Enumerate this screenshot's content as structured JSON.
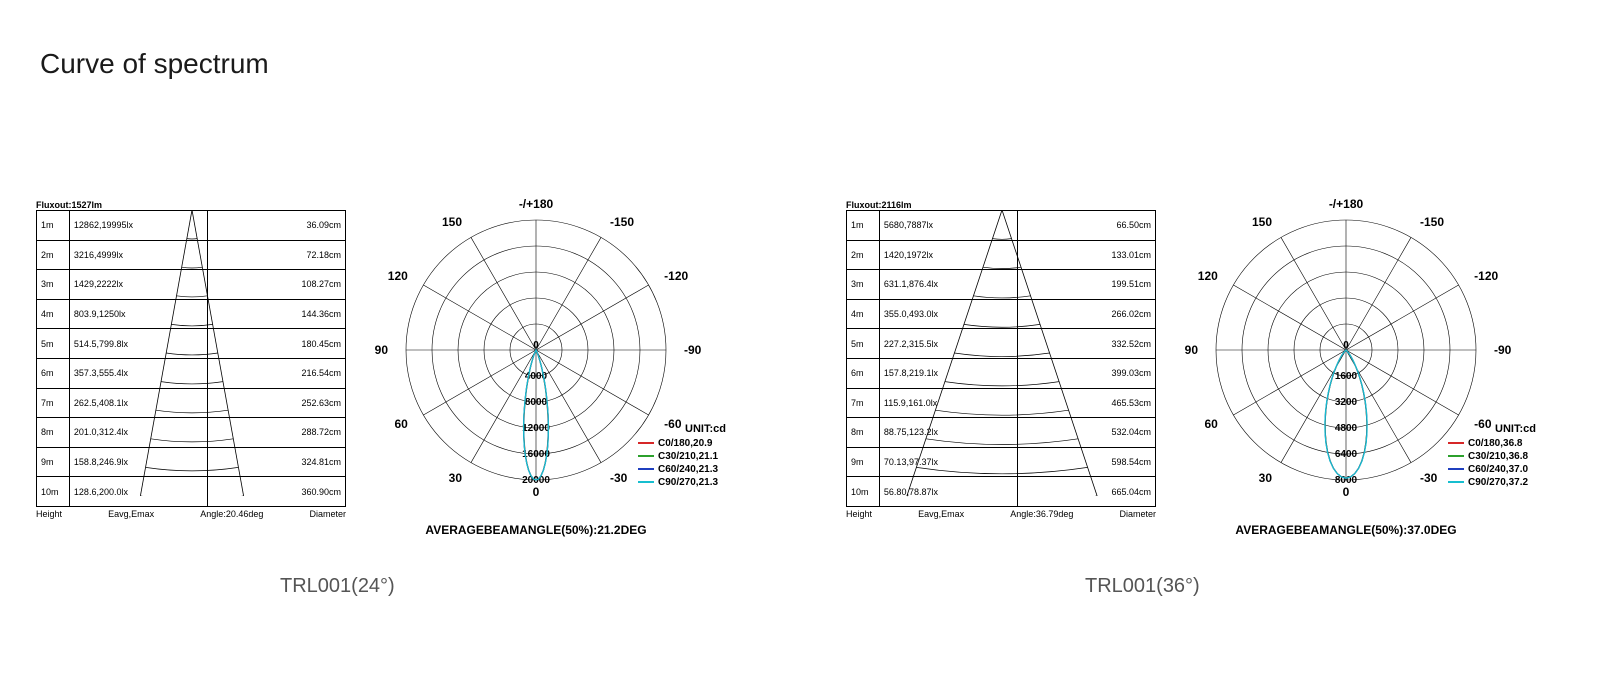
{
  "title": "Curve of spectrum",
  "captions": {
    "left": "TRL001(24°)",
    "right": "TRL001(36°)"
  },
  "panels": [
    {
      "key": "left",
      "flux_label": "Fluxout:1527lm",
      "axis": {
        "height": "Height",
        "eavg": "Eavg,Emax",
        "angle": "Angle:20.46deg",
        "diameter": "Diameter"
      },
      "rows": [
        {
          "h": "1m",
          "lx": "12862,19995lx",
          "dia": "36.09cm"
        },
        {
          "h": "2m",
          "lx": "3216,4999lx",
          "dia": "72.18cm"
        },
        {
          "h": "3m",
          "lx": "1429,2222lx",
          "dia": "108.27cm"
        },
        {
          "h": "4m",
          "lx": "803.9,1250lx",
          "dia": "144.36cm"
        },
        {
          "h": "5m",
          "lx": "514.5,799.8lx",
          "dia": "180.45cm"
        },
        {
          "h": "6m",
          "lx": "357.3,555.4lx",
          "dia": "216.54cm"
        },
        {
          "h": "7m",
          "lx": "262.5,408.1lx",
          "dia": "252.63cm"
        },
        {
          "h": "8m",
          "lx": "201.0,312.4lx",
          "dia": "288.72cm"
        },
        {
          "h": "9m",
          "lx": "158.8,246.9lx",
          "dia": "324.81cm"
        },
        {
          "h": "10m",
          "lx": "128.6,200.0lx",
          "dia": "360.90cm"
        }
      ],
      "beam_half_angle_deg": 10.23,
      "polar": {
        "top_label": "-/+180",
        "angle_labels": [
          "-150",
          "150",
          "-120",
          "120",
          "-90",
          "90",
          "-60",
          "60",
          "-30",
          "30",
          "0"
        ],
        "rings": 5,
        "spokes": 12,
        "ring_values": [
          "4000",
          "8000",
          "12000",
          "16000",
          "20000"
        ],
        "max_value": 20000,
        "unit_label": "UNIT:cd",
        "avg_label": "AVERAGEBEAMANGLE(50%):21.2DEG",
        "legend": [
          {
            "color": "#d62728",
            "label": "C0/180,20.9"
          },
          {
            "color": "#2ca02c",
            "label": "C30/210,21.1"
          },
          {
            "color": "#1f3fbf",
            "label": "C60/240,21.3"
          },
          {
            "color": "#17becf",
            "label": "C90/270,21.3"
          }
        ],
        "curves": [
          {
            "color": "#d62728",
            "half_angle_deg": 10.45,
            "peak": 19995
          },
          {
            "color": "#2ca02c",
            "half_angle_deg": 10.55,
            "peak": 19995
          },
          {
            "color": "#1f3fbf",
            "half_angle_deg": 10.65,
            "peak": 19995
          },
          {
            "color": "#17becf",
            "half_angle_deg": 10.65,
            "peak": 19995
          }
        ]
      }
    },
    {
      "key": "right",
      "flux_label": "Fluxout:2116lm",
      "axis": {
        "height": "Height",
        "eavg": "Eavg,Emax",
        "angle": "Angle:36.79deg",
        "diameter": "Diameter"
      },
      "rows": [
        {
          "h": "1m",
          "lx": "5680,7887lx",
          "dia": "66.50cm"
        },
        {
          "h": "2m",
          "lx": "1420,1972lx",
          "dia": "133.01cm"
        },
        {
          "h": "3m",
          "lx": "631.1,876.4lx",
          "dia": "199.51cm"
        },
        {
          "h": "4m",
          "lx": "355.0,493.0lx",
          "dia": "266.02cm"
        },
        {
          "h": "5m",
          "lx": "227.2,315.5lx",
          "dia": "332.52cm"
        },
        {
          "h": "6m",
          "lx": "157.8,219.1lx",
          "dia": "399.03cm"
        },
        {
          "h": "7m",
          "lx": "115.9,161.0lx",
          "dia": "465.53cm"
        },
        {
          "h": "8m",
          "lx": "88.75,123.2lx",
          "dia": "532.04cm"
        },
        {
          "h": "9m",
          "lx": "70.13,97.37lx",
          "dia": "598.54cm"
        },
        {
          "h": "10m",
          "lx": "56.80,78.87lx",
          "dia": "665.04cm"
        }
      ],
      "beam_half_angle_deg": 18.4,
      "polar": {
        "top_label": "-/+180",
        "angle_labels": [
          "-150",
          "150",
          "-120",
          "120",
          "-90",
          "90",
          "-60",
          "60",
          "-30",
          "30",
          "0"
        ],
        "rings": 5,
        "spokes": 12,
        "ring_values": [
          "1600",
          "3200",
          "4800",
          "6400",
          "8000"
        ],
        "max_value": 8000,
        "unit_label": "UNIT:cd",
        "avg_label": "AVERAGEBEAMANGLE(50%):37.0DEG",
        "legend": [
          {
            "color": "#d62728",
            "label": "C0/180,36.8"
          },
          {
            "color": "#2ca02c",
            "label": "C30/210,36.8"
          },
          {
            "color": "#1f3fbf",
            "label": "C60/240,37.0"
          },
          {
            "color": "#17becf",
            "label": "C90/270,37.2"
          }
        ],
        "curves": [
          {
            "color": "#d62728",
            "half_angle_deg": 18.4,
            "peak": 7887
          },
          {
            "color": "#2ca02c",
            "half_angle_deg": 18.4,
            "peak": 7887
          },
          {
            "color": "#1f3fbf",
            "half_angle_deg": 18.5,
            "peak": 7887
          },
          {
            "color": "#17becf",
            "half_angle_deg": 18.6,
            "peak": 7887
          }
        ]
      }
    }
  ],
  "style": {
    "grid_color": "#000000",
    "text_color": "#000000",
    "line_width": 0.8,
    "title_color": "#1a1a1a",
    "caption_color": "#555555"
  }
}
